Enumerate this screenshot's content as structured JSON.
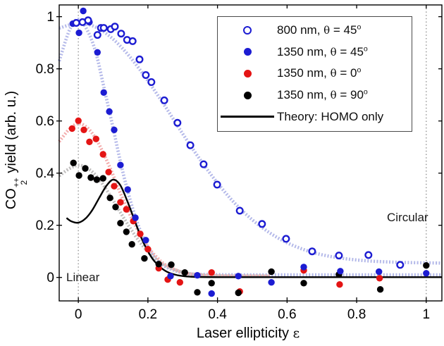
{
  "chart_data": {
    "type": "scatter",
    "title": "",
    "xlabel": {
      "text": "Laser ellipticity",
      "symbol": "ε"
    },
    "ylabel": {
      "pre": "CO",
      "sub": "2",
      "sup": "++",
      "post": " yield (arb. u.)"
    },
    "xlim": [
      -0.055,
      1.045
    ],
    "ylim": [
      -0.09,
      1.045
    ],
    "xticks": [
      0,
      0.2,
      0.4,
      0.6,
      0.8,
      1
    ],
    "yticks": [
      0,
      0.2,
      0.4,
      0.6,
      0.8,
      1
    ],
    "xtick_labels": [
      "0",
      "0.2",
      "0.4",
      "0.6",
      "0.8",
      "1"
    ],
    "ytick_labels": [
      "0",
      "0.2",
      "0.4",
      "0.6",
      "0.8",
      "1"
    ],
    "grid": "off",
    "legend_position": "upper-right",
    "annotations": [
      {
        "text": "Linear",
        "x": 0.03,
        "y": 0.02
      },
      {
        "text": "Circular",
        "x": 0.93,
        "y": 0.23
      }
    ],
    "vlines": [
      {
        "x": 0,
        "style": "dotted",
        "color": "#8c8c8c"
      },
      {
        "x": 1,
        "style": "dotted",
        "color": "#8c8c8c"
      }
    ],
    "series": [
      {
        "name": "800 nm, θ = 45°",
        "marker": "open-circle",
        "color": "#1c1cd2",
        "points": [
          [
            -0.006,
            0.976
          ],
          [
            0.012,
            0.979
          ],
          [
            0.028,
            0.986
          ],
          [
            0.055,
            0.93
          ],
          [
            0.065,
            0.957
          ],
          [
            0.073,
            0.957
          ],
          [
            0.093,
            0.952
          ],
          [
            0.105,
            0.962
          ],
          [
            0.123,
            0.935
          ],
          [
            0.14,
            0.911
          ],
          [
            0.156,
            0.906
          ],
          [
            0.176,
            0.836
          ],
          [
            0.194,
            0.776
          ],
          [
            0.21,
            0.749
          ],
          [
            0.247,
            0.679
          ],
          [
            0.285,
            0.593
          ],
          [
            0.322,
            0.507
          ],
          [
            0.36,
            0.434
          ],
          [
            0.399,
            0.356
          ],
          [
            0.464,
            0.256
          ],
          [
            0.528,
            0.205
          ],
          [
            0.597,
            0.148
          ],
          [
            0.672,
            0.1
          ],
          [
            0.749,
            0.084
          ],
          [
            0.834,
            0.086
          ],
          [
            0.925,
            0.048
          ]
        ]
      },
      {
        "name": "1350 nm, θ = 45°",
        "marker": "filled-circle",
        "color": "#1c1cd2",
        "points": [
          [
            -0.016,
            0.973
          ],
          [
            0.002,
            0.938
          ],
          [
            0.014,
            1.022
          ],
          [
            0.032,
            0.979
          ],
          [
            0.055,
            0.863
          ],
          [
            0.073,
            0.709
          ],
          [
            0.089,
            0.636
          ],
          [
            0.103,
            0.566
          ],
          [
            0.121,
            0.431
          ],
          [
            0.142,
            0.337
          ],
          [
            0.164,
            0.229
          ],
          [
            0.194,
            0.143
          ],
          [
            0.265,
            0.005
          ],
          [
            0.342,
            0.008
          ],
          [
            0.383,
            -0.062
          ],
          [
            0.46,
            0.005
          ],
          [
            0.555,
            -0.019
          ],
          [
            0.648,
            0.04
          ],
          [
            0.753,
            0.024
          ],
          [
            0.864,
            0.022
          ],
          [
            1.0,
            0.016
          ]
        ]
      },
      {
        "name": "1350 nm, θ = 0°",
        "marker": "filled-circle",
        "color": "#e41414",
        "points": [
          [
            -0.018,
            0.571
          ],
          [
            0.0,
            0.601
          ],
          [
            0.016,
            0.566
          ],
          [
            0.032,
            0.52
          ],
          [
            0.051,
            0.531
          ],
          [
            0.071,
            0.472
          ],
          [
            0.087,
            0.404
          ],
          [
            0.103,
            0.35
          ],
          [
            0.121,
            0.288
          ],
          [
            0.138,
            0.261
          ],
          [
            0.158,
            0.216
          ],
          [
            0.178,
            0.167
          ],
          [
            0.2,
            0.108
          ],
          [
            0.231,
            0.035
          ],
          [
            0.257,
            -0.008
          ],
          [
            0.292,
            -0.019
          ],
          [
            0.383,
            0.019
          ],
          [
            0.464,
            -0.054
          ],
          [
            0.648,
            0.027
          ],
          [
            0.751,
            -0.027
          ],
          [
            0.866,
            -0.003
          ]
        ]
      },
      {
        "name": "1350 nm, θ = 90°",
        "marker": "filled-circle",
        "color": "#000000",
        "points": [
          [
            -0.014,
            0.439
          ],
          [
            0.002,
            0.391
          ],
          [
            0.02,
            0.418
          ],
          [
            0.036,
            0.383
          ],
          [
            0.053,
            0.375
          ],
          [
            0.071,
            0.38
          ],
          [
            0.091,
            0.305
          ],
          [
            0.107,
            0.27
          ],
          [
            0.121,
            0.208
          ],
          [
            0.138,
            0.175
          ],
          [
            0.154,
            0.127
          ],
          [
            0.19,
            0.073
          ],
          [
            0.231,
            0.051
          ],
          [
            0.267,
            0.049
          ],
          [
            0.306,
            0.019
          ],
          [
            0.342,
            -0.057
          ],
          [
            0.383,
            -0.022
          ],
          [
            0.46,
            -0.059
          ],
          [
            0.555,
            0.022
          ],
          [
            0.648,
            -0.022
          ],
          [
            0.749,
            0.011
          ],
          [
            0.868,
            -0.046
          ],
          [
            1.0,
            0.046
          ]
        ]
      },
      {
        "name": "Theory: HOMO only",
        "marker": "line",
        "color": "#000000",
        "points": [
          [
            -0.034,
            0.228
          ],
          [
            -0.02,
            0.215
          ],
          [
            0.0,
            0.21
          ],
          [
            0.02,
            0.225
          ],
          [
            0.04,
            0.258
          ],
          [
            0.06,
            0.305
          ],
          [
            0.08,
            0.35
          ],
          [
            0.1,
            0.375
          ],
          [
            0.12,
            0.355
          ],
          [
            0.14,
            0.295
          ],
          [
            0.16,
            0.225
          ],
          [
            0.18,
            0.155
          ],
          [
            0.2,
            0.1
          ],
          [
            0.22,
            0.06
          ],
          [
            0.25,
            0.025
          ],
          [
            0.28,
            0.01
          ],
          [
            0.32,
            0.003
          ],
          [
            0.4,
            0.001
          ],
          [
            0.7,
            0.001
          ],
          [
            1.045,
            0.001
          ]
        ]
      }
    ],
    "fit_curves": [
      {
        "for": "800 nm, θ = 45°",
        "color": "#b0b5e8",
        "points": [
          [
            -0.055,
            0.956
          ],
          [
            0.0,
            0.975
          ],
          [
            0.05,
            0.96
          ],
          [
            0.1,
            0.914
          ],
          [
            0.15,
            0.843
          ],
          [
            0.2,
            0.754
          ],
          [
            0.25,
            0.655
          ],
          [
            0.3,
            0.551
          ],
          [
            0.35,
            0.452
          ],
          [
            0.4,
            0.362
          ],
          [
            0.45,
            0.284
          ],
          [
            0.5,
            0.221
          ],
          [
            0.55,
            0.171
          ],
          [
            0.6,
            0.133
          ],
          [
            0.65,
            0.106
          ],
          [
            0.7,
            0.087
          ],
          [
            0.75,
            0.075
          ],
          [
            0.8,
            0.067
          ],
          [
            0.85,
            0.062
          ],
          [
            0.9,
            0.059
          ],
          [
            0.95,
            0.057
          ],
          [
            1.0,
            0.056
          ],
          [
            1.045,
            0.055
          ]
        ]
      },
      {
        "for": "1350 nm, θ = 45°",
        "color": "#b0b5e8",
        "points": [
          [
            -0.055,
            0.83
          ],
          [
            -0.025,
            0.95
          ],
          [
            0.0,
            0.99
          ],
          [
            0.025,
            0.95
          ],
          [
            0.05,
            0.864
          ],
          [
            0.075,
            0.72
          ],
          [
            0.1,
            0.573
          ],
          [
            0.125,
            0.42
          ],
          [
            0.15,
            0.292
          ],
          [
            0.175,
            0.19
          ],
          [
            0.2,
            0.117
          ],
          [
            0.225,
            0.068
          ],
          [
            0.25,
            0.041
          ],
          [
            0.3,
            0.017
          ],
          [
            0.35,
            0.012
          ],
          [
            0.45,
            0.01
          ],
          [
            0.6,
            0.01
          ],
          [
            0.8,
            0.01
          ],
          [
            1.045,
            0.01
          ]
        ]
      },
      {
        "for": "1350 nm, θ = 0°",
        "color": "#f2a8a8",
        "points": [
          [
            -0.055,
            0.521
          ],
          [
            -0.025,
            0.57
          ],
          [
            0.0,
            0.59
          ],
          [
            0.025,
            0.575
          ],
          [
            0.05,
            0.533
          ],
          [
            0.075,
            0.468
          ],
          [
            0.1,
            0.392
          ],
          [
            0.125,
            0.31
          ],
          [
            0.15,
            0.236
          ],
          [
            0.175,
            0.172
          ],
          [
            0.2,
            0.117
          ],
          [
            0.225,
            0.078
          ],
          [
            0.25,
            0.049
          ],
          [
            0.3,
            0.019
          ],
          [
            0.35,
            0.01
          ],
          [
            0.4,
            0.006
          ],
          [
            0.5,
            0.005
          ],
          [
            0.55,
            0.005
          ]
        ]
      },
      {
        "for": "1350 nm, θ = 90°",
        "color": "#bdbaba",
        "points": [
          [
            -0.055,
            0.39
          ],
          [
            -0.025,
            0.418
          ],
          [
            0.0,
            0.43
          ],
          [
            0.025,
            0.42
          ],
          [
            0.05,
            0.392
          ],
          [
            0.075,
            0.348
          ],
          [
            0.1,
            0.296
          ],
          [
            0.125,
            0.24
          ],
          [
            0.15,
            0.187
          ],
          [
            0.175,
            0.139
          ],
          [
            0.2,
            0.099
          ],
          [
            0.225,
            0.068
          ],
          [
            0.25,
            0.045
          ],
          [
            0.3,
            0.02
          ],
          [
            0.35,
            0.01
          ],
          [
            0.4,
            0.006
          ],
          [
            0.5,
            0.005
          ],
          [
            0.55,
            0.005
          ]
        ]
      }
    ]
  },
  "legend": {
    "items": [
      {
        "pre": "800 nm, ",
        "theta": "θ",
        "eq": " = 45",
        "sup": "o",
        "marker": "open-circle",
        "color": "#1c1cd2"
      },
      {
        "pre": "1350 nm, ",
        "theta": "θ",
        "eq": " = 45",
        "sup": "o",
        "marker": "filled-circle",
        "color": "#1c1cd2"
      },
      {
        "pre": "1350 nm, ",
        "theta": "θ",
        "eq": " = 0",
        "sup": "o",
        "marker": "filled-circle",
        "color": "#e41414"
      },
      {
        "pre": "1350 nm, ",
        "theta": "θ",
        "eq": " = 90",
        "sup": "o",
        "marker": "filled-circle",
        "color": "#000000"
      },
      {
        "pre": "Theory: HOMO only",
        "theta": "",
        "eq": "",
        "sup": "",
        "marker": "line",
        "color": "#000000"
      }
    ]
  }
}
